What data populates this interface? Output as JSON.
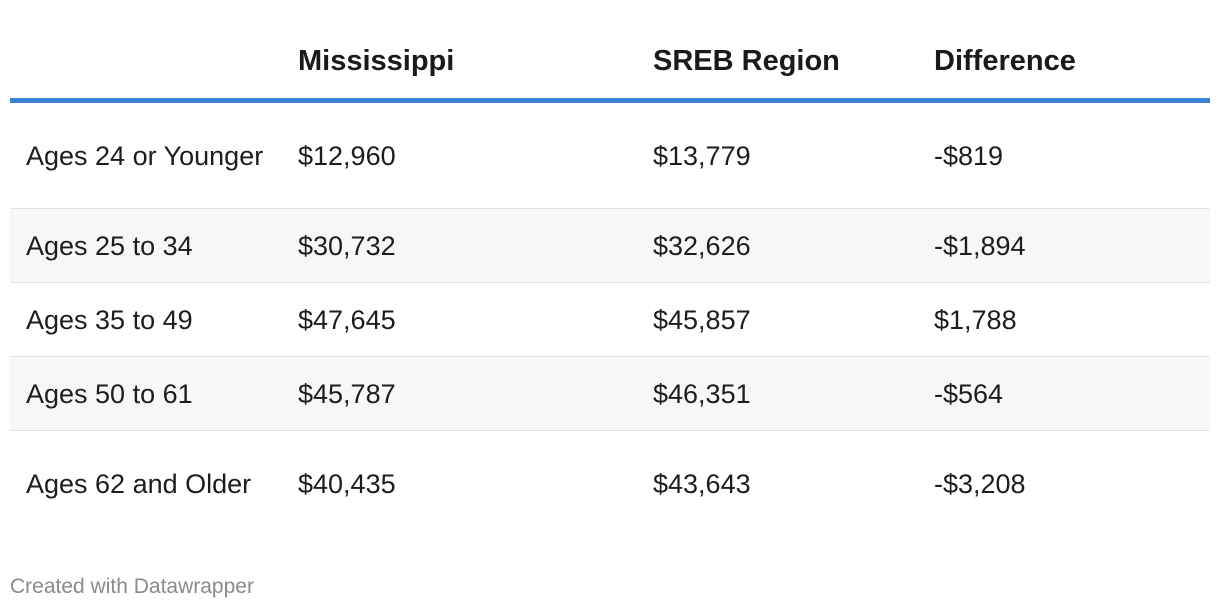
{
  "chart_data": {
    "type": "table",
    "columns": [
      "",
      "Mississippi",
      "SREB Region",
      "Difference"
    ],
    "rows": [
      [
        "Ages 24 or Younger",
        "$12,960",
        "$13,779",
        "-$819"
      ],
      [
        "Ages 25 to 34",
        "$30,732",
        "$32,626",
        "-$1,894"
      ],
      [
        "Ages 35 to 49",
        "$47,645",
        "$45,857",
        "$1,788"
      ],
      [
        "Ages 50 to 61",
        "$45,787",
        "$46,351",
        "-$564"
      ],
      [
        "Ages 62 and Older",
        "$40,435",
        "$43,643",
        "-$3,208"
      ]
    ],
    "header_rule_color": "#3b83d6",
    "stripe_color": "#f7f7f7"
  },
  "footer": {
    "credit": "Created with Datawrapper"
  }
}
